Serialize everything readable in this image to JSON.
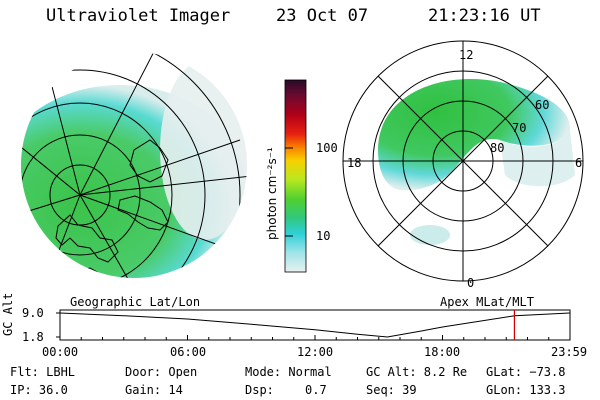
{
  "header": {
    "instrument": "Ultraviolet Imager",
    "date": "23 Oct 07",
    "time": "21:23:16 UT"
  },
  "colorbar": {
    "unit_label": "photon cm⁻²s⁻¹",
    "ticks": [
      "100",
      "10"
    ],
    "scale": "log",
    "colors": [
      "#2a0a28",
      "#6a0a30",
      "#a0001c",
      "#d81010",
      "#f04a10",
      "#f89000",
      "#f8d000",
      "#c8ec10",
      "#70d820",
      "#30c840",
      "#20c8b0",
      "#40d8e0",
      "#a0e8e8",
      "#e0eeee"
    ]
  },
  "left_panel": {
    "caption": "Geographic Lat/Lon"
  },
  "right_panel": {
    "caption": "Apex MLat/MLT",
    "mlt_labels": {
      "top": "12",
      "left": "18",
      "right": "6",
      "bottom": "0"
    },
    "lat_labels": [
      "60",
      "70",
      "80"
    ]
  },
  "altitude_plot": {
    "ylabel": "GC Alt",
    "yticks": [
      "9.0",
      "1.8"
    ],
    "xticks": [
      "00:00",
      "06:00",
      "12:00",
      "18:00",
      "23:59"
    ],
    "marker_time": "21:23",
    "marker_color": "#d00000",
    "profile": [
      [
        0,
        9.0
      ],
      [
        3,
        8.2
      ],
      [
        6,
        7.2
      ],
      [
        9,
        5.6
      ],
      [
        12,
        4.0
      ],
      [
        14,
        2.6
      ],
      [
        15.4,
        1.8
      ],
      [
        17,
        3.6
      ],
      [
        18,
        4.8
      ],
      [
        21.4,
        8.2
      ],
      [
        23.98,
        9.0
      ]
    ]
  },
  "status": {
    "row1": {
      "flt": "Flt: LBHL",
      "door": "Door: Open",
      "mode": "Mode: Normal",
      "gcalt": "GC Alt: 8.2 Re",
      "glat": "GLat: −73.8"
    },
    "row2": {
      "ip": "IP: 36.0",
      "gain": "Gain: 14",
      "dsp_label": "Dsp:",
      "dsp_value": "0.7",
      "seq": "Seq: 39",
      "glon": "GLon: 133.3"
    }
  }
}
